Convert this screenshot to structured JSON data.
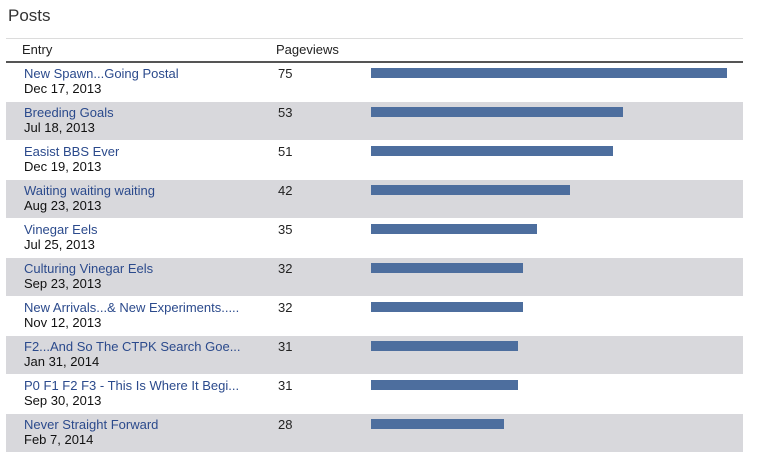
{
  "panel": {
    "title": "Posts",
    "headers": {
      "entry": "Entry",
      "pageviews": "Pageviews"
    }
  },
  "posts": [
    {
      "title": "New Spawn...Going Postal",
      "date": "Dec 17, 2013",
      "views": 75
    },
    {
      "title": "Breeding Goals",
      "date": "Jul 18, 2013",
      "views": 53
    },
    {
      "title": "Easist BBS Ever",
      "date": "Dec 19, 2013",
      "views": 51
    },
    {
      "title": "Waiting waiting waiting",
      "date": "Aug 23, 2013",
      "views": 42
    },
    {
      "title": "Vinegar Eels",
      "date": "Jul 25, 2013",
      "views": 35
    },
    {
      "title": "Culturing Vinegar Eels",
      "date": "Sep 23, 2013",
      "views": 32
    },
    {
      "title": "New Arrivals...& New Experiments.....",
      "date": "Nov 12, 2013",
      "views": 32
    },
    {
      "title": "F2...And So The CTPK Search Goe...",
      "date": "Jan 31, 2014",
      "views": 31
    },
    {
      "title": "P0 F1 F2 F3 - This Is Where It Begi...",
      "date": "Sep 30, 2013",
      "views": 31
    },
    {
      "title": "Never Straight Forward",
      "date": "Feb 7, 2014",
      "views": 28
    }
  ],
  "colors": {
    "bar": "#4d6e9e",
    "link": "#2b4a8c",
    "stripe": "#d8d8dc"
  }
}
